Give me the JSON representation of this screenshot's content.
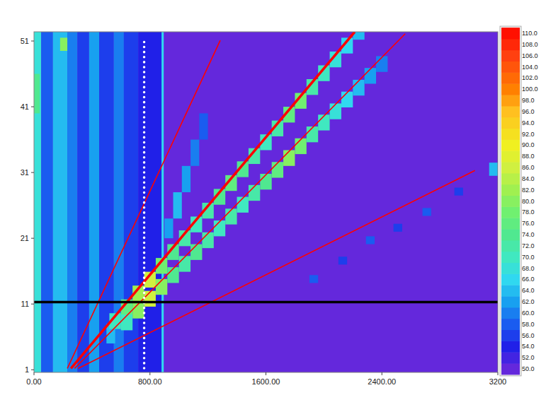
{
  "chart_data": {
    "type": "heatmap",
    "xlim": [
      0,
      3200
    ],
    "ylim": [
      0.6,
      52.4
    ],
    "xticks": [
      {
        "value": 0,
        "label": "0.00"
      },
      {
        "value": 800,
        "label": "800.00"
      },
      {
        "value": 1600,
        "label": "1600.00"
      },
      {
        "value": 2400,
        "label": "2400.00"
      },
      {
        "value": 3200,
        "label": "3200"
      }
    ],
    "yticks": [
      1,
      11,
      21,
      31,
      41,
      51
    ],
    "color_scale": {
      "range": [
        50,
        110
      ],
      "ticks": [
        {
          "value": 50,
          "label": "50.0"
        },
        {
          "value": 52,
          "label": "52.0"
        },
        {
          "value": 54,
          "label": "54.0"
        },
        {
          "value": 56,
          "label": "56.0"
        },
        {
          "value": 58,
          "label": "58.0"
        },
        {
          "value": 60,
          "label": "60.0"
        },
        {
          "value": 62,
          "label": "62.0"
        },
        {
          "value": 64,
          "label": "64.0"
        },
        {
          "value": 66,
          "label": "66.0"
        },
        {
          "value": 68,
          "label": "68.0"
        },
        {
          "value": 70,
          "label": "70.0"
        },
        {
          "value": 72,
          "label": "72.0"
        },
        {
          "value": 74,
          "label": "74.0"
        },
        {
          "value": 76,
          "label": "76.0"
        },
        {
          "value": 78,
          "label": "78.0"
        },
        {
          "value": 80,
          "label": "80.0"
        },
        {
          "value": 82,
          "label": "82.0"
        },
        {
          "value": 84,
          "label": "84.0"
        },
        {
          "value": 86,
          "label": "86.0"
        },
        {
          "value": 88,
          "label": "88.0"
        },
        {
          "value": 90,
          "label": "90.0"
        },
        {
          "value": 92,
          "label": "92.0"
        },
        {
          "value": 94,
          "label": "94.0"
        },
        {
          "value": 96,
          "label": "96.0"
        },
        {
          "value": 98,
          "label": "98.0"
        },
        {
          "value": 100,
          "label": "100.0"
        },
        {
          "value": 102,
          "label": "102.0"
        },
        {
          "value": 104,
          "label": "104.0"
        },
        {
          "value": 106,
          "label": "106.0"
        },
        {
          "value": 108,
          "label": "108.0"
        },
        {
          "value": 110,
          "label": "110.0"
        }
      ]
    },
    "cells": [
      {
        "x": [
          0,
          50
        ],
        "y": [
          0.6,
          52.4
        ],
        "value": 68
      },
      {
        "x": [
          50,
          130
        ],
        "y": [
          0.6,
          52.4
        ],
        "value": 58
      },
      {
        "x": [
          130,
          230
        ],
        "y": [
          0.6,
          52.4
        ],
        "value": 64
      },
      {
        "x": [
          230,
          300
        ],
        "y": [
          0.6,
          52.4
        ],
        "value": 60
      },
      {
        "x": [
          300,
          380
        ],
        "y": [
          0.6,
          52.4
        ],
        "value": 56
      },
      {
        "x": [
          380,
          450
        ],
        "y": [
          0.6,
          52.4
        ],
        "value": 62
      },
      {
        "x": [
          450,
          550
        ],
        "y": [
          0.6,
          52.4
        ],
        "value": 56
      },
      {
        "x": [
          550,
          620
        ],
        "y": [
          0.6,
          52.4
        ],
        "value": 60
      },
      {
        "x": [
          620,
          720
        ],
        "y": [
          0.6,
          52.4
        ],
        "value": 56
      },
      {
        "x": [
          720,
          880
        ],
        "y": [
          0.6,
          52.4
        ],
        "value": 54
      },
      {
        "x": [
          880,
          895
        ],
        "y": [
          0.6,
          52.4
        ],
        "value": 66
      },
      {
        "x": [
          180,
          230
        ],
        "y": [
          49.5,
          51.5
        ],
        "value": 80
      },
      {
        "x": [
          0,
          40
        ],
        "y": [
          40,
          46
        ],
        "value": 74
      },
      {
        "x": [
          500,
          560
        ],
        "y": [
          5,
          8
        ],
        "value": 64
      },
      {
        "x": [
          900,
          960
        ],
        "y": [
          21,
          24
        ],
        "value": 62
      },
      {
        "x": [
          960,
          1020
        ],
        "y": [
          24,
          28
        ],
        "value": 64
      },
      {
        "x": [
          1020,
          1080
        ],
        "y": [
          28,
          32
        ],
        "value": 62
      },
      {
        "x": [
          1080,
          1140
        ],
        "y": [
          32,
          36
        ],
        "value": 60
      },
      {
        "x": [
          1140,
          1200
        ],
        "y": [
          36,
          40
        ],
        "value": 58
      },
      {
        "x": [
          520,
          600
        ],
        "y": [
          7.2,
          9.6
        ],
        "value": 70
      },
      {
        "x": [
          600,
          680
        ],
        "y": [
          9.3,
          11.7
        ],
        "value": 76
      },
      {
        "x": [
          680,
          760
        ],
        "y": [
          11.4,
          13.8
        ],
        "value": 82
      },
      {
        "x": [
          760,
          840
        ],
        "y": [
          13.5,
          15.9
        ],
        "value": 86
      },
      {
        "x": [
          840,
          920
        ],
        "y": [
          15.6,
          18.0
        ],
        "value": 78
      },
      {
        "x": [
          920,
          1000
        ],
        "y": [
          17.7,
          20.1
        ],
        "value": 74
      },
      {
        "x": [
          1000,
          1080
        ],
        "y": [
          19.8,
          22.2
        ],
        "value": 72
      },
      {
        "x": [
          1080,
          1160
        ],
        "y": [
          21.9,
          24.3
        ],
        "value": 70
      },
      {
        "x": [
          1160,
          1240
        ],
        "y": [
          24.0,
          26.4
        ],
        "value": 72
      },
      {
        "x": [
          1240,
          1320
        ],
        "y": [
          26.1,
          28.5
        ],
        "value": 74
      },
      {
        "x": [
          1320,
          1400
        ],
        "y": [
          28.2,
          30.6
        ],
        "value": 76
      },
      {
        "x": [
          1400,
          1480
        ],
        "y": [
          30.3,
          32.7
        ],
        "value": 74
      },
      {
        "x": [
          1480,
          1560
        ],
        "y": [
          32.3,
          34.7
        ],
        "value": 72
      },
      {
        "x": [
          1560,
          1640
        ],
        "y": [
          34.4,
          36.8
        ],
        "value": 70
      },
      {
        "x": [
          1640,
          1720
        ],
        "y": [
          36.5,
          38.9
        ],
        "value": 72
      },
      {
        "x": [
          1720,
          1800
        ],
        "y": [
          38.6,
          41.0
        ],
        "value": 76
      },
      {
        "x": [
          1800,
          1880
        ],
        "y": [
          40.7,
          43.1
        ],
        "value": 78
      },
      {
        "x": [
          1880,
          1960
        ],
        "y": [
          42.8,
          45.2
        ],
        "value": 72
      },
      {
        "x": [
          1960,
          2040
        ],
        "y": [
          44.9,
          47.3
        ],
        "value": 70
      },
      {
        "x": [
          2040,
          2120
        ],
        "y": [
          47.0,
          49.4
        ],
        "value": 68
      },
      {
        "x": [
          2120,
          2200
        ],
        "y": [
          49.1,
          51.5
        ],
        "value": 66
      },
      {
        "x": [
          2200,
          2280
        ],
        "y": [
          51.2,
          52.4
        ],
        "value": 64
      },
      {
        "x": [
          600,
          680
        ],
        "y": [
          7.0,
          9.4
        ],
        "value": 70
      },
      {
        "x": [
          680,
          760
        ],
        "y": [
          8.8,
          11.2
        ],
        "value": 80
      },
      {
        "x": [
          760,
          840
        ],
        "y": [
          10.6,
          13.0
        ],
        "value": 86
      },
      {
        "x": [
          840,
          920
        ],
        "y": [
          12.4,
          14.8
        ],
        "value": 80
      },
      {
        "x": [
          920,
          1000
        ],
        "y": [
          14.2,
          16.6
        ],
        "value": 74
      },
      {
        "x": [
          1000,
          1080
        ],
        "y": [
          15.9,
          18.3
        ],
        "value": 72
      },
      {
        "x": [
          1080,
          1160
        ],
        "y": [
          17.7,
          20.1
        ],
        "value": 74
      },
      {
        "x": [
          1160,
          1240
        ],
        "y": [
          19.5,
          21.9
        ],
        "value": 72
      },
      {
        "x": [
          1240,
          1320
        ],
        "y": [
          21.3,
          23.7
        ],
        "value": 70
      },
      {
        "x": [
          1320,
          1400
        ],
        "y": [
          23.1,
          25.5
        ],
        "value": 72
      },
      {
        "x": [
          1400,
          1480
        ],
        "y": [
          24.9,
          27.3
        ],
        "value": 70
      },
      {
        "x": [
          1480,
          1560
        ],
        "y": [
          26.7,
          29.1
        ],
        "value": 72
      },
      {
        "x": [
          1560,
          1640
        ],
        "y": [
          28.4,
          30.8
        ],
        "value": 74
      },
      {
        "x": [
          1640,
          1720
        ],
        "y": [
          30.2,
          32.6
        ],
        "value": 76
      },
      {
        "x": [
          1720,
          1800
        ],
        "y": [
          32.0,
          34.4
        ],
        "value": 80
      },
      {
        "x": [
          1800,
          1880
        ],
        "y": [
          33.8,
          36.2
        ],
        "value": 78
      },
      {
        "x": [
          1880,
          1960
        ],
        "y": [
          35.6,
          38.0
        ],
        "value": 72
      },
      {
        "x": [
          1960,
          2040
        ],
        "y": [
          37.4,
          39.8
        ],
        "value": 70
      },
      {
        "x": [
          2040,
          2120
        ],
        "y": [
          39.1,
          41.5
        ],
        "value": 68
      },
      {
        "x": [
          2120,
          2200
        ],
        "y": [
          40.9,
          43.3
        ],
        "value": 66
      },
      {
        "x": [
          2200,
          2280
        ],
        "y": [
          42.7,
          45.1
        ],
        "value": 64
      },
      {
        "x": [
          2280,
          2360
        ],
        "y": [
          44.5,
          46.9
        ],
        "value": 62
      },
      {
        "x": [
          2360,
          2440
        ],
        "y": [
          46.3,
          48.7
        ],
        "value": 60
      },
      {
        "x": [
          1900,
          1960
        ],
        "y": [
          14.2,
          15.4
        ],
        "value": 58
      },
      {
        "x": [
          2100,
          2160
        ],
        "y": [
          17.0,
          18.2
        ],
        "value": 56
      },
      {
        "x": [
          2290,
          2350
        ],
        "y": [
          20.1,
          21.3
        ],
        "value": 58
      },
      {
        "x": [
          2480,
          2540
        ],
        "y": [
          22.0,
          23.2
        ],
        "value": 56
      },
      {
        "x": [
          2680,
          2740
        ],
        "y": [
          24.4,
          25.6
        ],
        "value": 58
      },
      {
        "x": [
          2900,
          2960
        ],
        "y": [
          27.5,
          28.7
        ],
        "value": 56
      },
      {
        "x": [
          3140,
          3200
        ],
        "y": [
          30.5,
          32.5
        ],
        "value": 64
      }
    ],
    "lines": [
      {
        "x": [
          230,
          1285
        ],
        "y": [
          1.2,
          51.1
        ],
        "color": "#ff0000",
        "line_style": "solid"
      },
      {
        "x": [
          255,
          2213
        ],
        "y": [
          1.2,
          52.4
        ],
        "color": "#ff0000",
        "line_style": "thick"
      },
      {
        "x": [
          280,
          2561
        ],
        "y": [
          1.2,
          52.1
        ],
        "color": "#ff0000",
        "line_style": "solid"
      },
      {
        "x": [
          304,
          3042
        ],
        "y": [
          1.2,
          31.3
        ],
        "color": "#ff0000",
        "line_style": "solid"
      }
    ],
    "vlines": [
      {
        "x": 760,
        "color": "#ffffff",
        "line_style": "dotted"
      }
    ],
    "hlines": [
      {
        "y": 11.3,
        "color": "#000000",
        "line_style": "thick"
      }
    ]
  }
}
